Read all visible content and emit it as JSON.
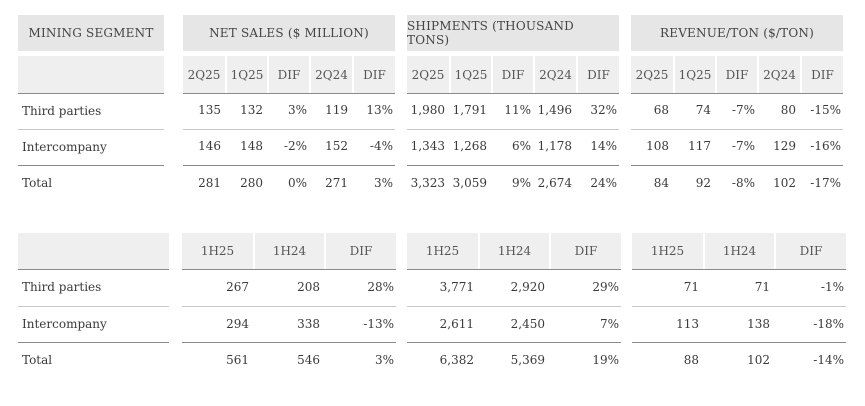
{
  "top_table": {
    "segment_header": "MINING SEGMENT",
    "groups": [
      {
        "title": "NET SALES ($ MILLION)",
        "cols": [
          "2Q25",
          "1Q25",
          "DIF",
          "2Q24",
          "DIF"
        ]
      },
      {
        "title": "SHIPMENTS (THOUSAND TONS)",
        "cols": [
          "2Q25",
          "1Q25",
          "DIF",
          "2Q24",
          "DIF"
        ]
      },
      {
        "title": "REVENUE/TON ($/TON)",
        "cols": [
          "2Q25",
          "1Q25",
          "DIF",
          "2Q24",
          "DIF"
        ]
      }
    ],
    "rows": [
      {
        "label": "Third parties",
        "sales": [
          "135",
          "132",
          "3%",
          "119",
          "13%"
        ],
        "ship": [
          "1,980",
          "1,791",
          "11%",
          "1,496",
          "32%"
        ],
        "rev": [
          "68",
          "74",
          "-7%",
          "80",
          "-15%"
        ]
      },
      {
        "label": "Intercompany",
        "sales": [
          "146",
          "148",
          "-2%",
          "152",
          "-4%"
        ],
        "ship": [
          "1,343",
          "1,268",
          "6%",
          "1,178",
          "14%"
        ],
        "rev": [
          "108",
          "117",
          "-7%",
          "129",
          "-16%"
        ]
      },
      {
        "label": "Total",
        "sales": [
          "281",
          "280",
          "0%",
          "271",
          "3%"
        ],
        "ship": [
          "3,323",
          "3,059",
          "9%",
          "2,674",
          "24%"
        ],
        "rev": [
          "84",
          "92",
          "-8%",
          "102",
          "-17%"
        ]
      }
    ]
  },
  "bottom_table": {
    "cols": [
      "1H25",
      "1H24",
      "DIF"
    ],
    "rows": [
      {
        "label": "Third parties",
        "sales": [
          "267",
          "208",
          "28%"
        ],
        "ship": [
          "3,771",
          "2,920",
          "29%"
        ],
        "rev": [
          "71",
          "71",
          "-1%"
        ]
      },
      {
        "label": "Intercompany",
        "sales": [
          "294",
          "338",
          "-13%"
        ],
        "ship": [
          "2,611",
          "2,450",
          "7%"
        ],
        "rev": [
          "113",
          "138",
          "-18%"
        ]
      },
      {
        "label": "Total",
        "sales": [
          "561",
          "546",
          "3%"
        ],
        "ship": [
          "6,382",
          "5,369",
          "19%"
        ],
        "rev": [
          "88",
          "102",
          "-14%"
        ]
      }
    ]
  }
}
